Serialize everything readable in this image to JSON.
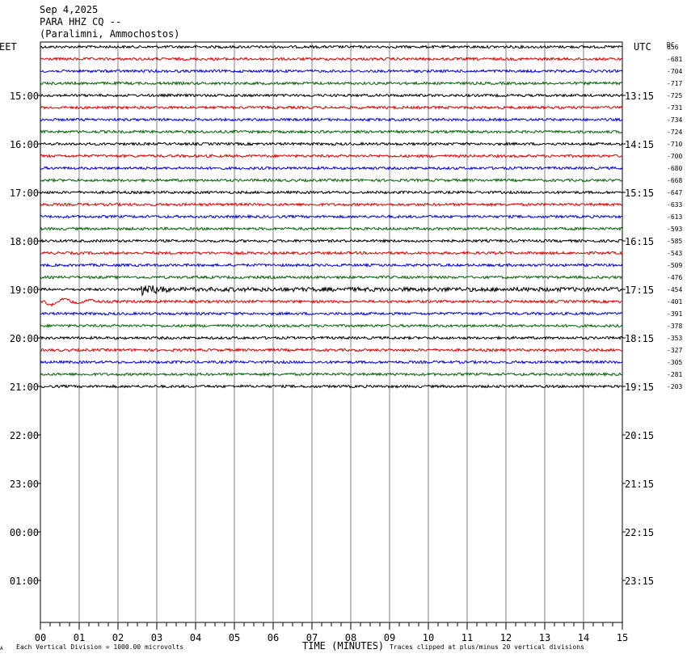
{
  "header": {
    "date": "Sep 4,2025",
    "station": "PARA HHZ CQ --",
    "location": "(Paralimni, Ammochostos)"
  },
  "chart_data": {
    "type": "line",
    "title": "",
    "xlabel": "TIME (MINUTES)",
    "x_ticks": [
      "00",
      "01",
      "02",
      "03",
      "04",
      "05",
      "06",
      "07",
      "08",
      "09",
      "10",
      "11",
      "12",
      "13",
      "14",
      "15"
    ],
    "xlim": [
      0,
      15
    ],
    "left_timezone": "EET",
    "right_timezone": "UTC",
    "left_hour_labels": [
      "15:00",
      "16:00",
      "17:00",
      "18:00",
      "19:00",
      "20:00",
      "21:00",
      "22:00",
      "23:00",
      "00:00",
      "01:00"
    ],
    "right_hour_labels": [
      "13:15",
      "14:15",
      "15:15",
      "16:15",
      "17:15",
      "18:15",
      "19:15",
      "20:15",
      "21:15",
      "22:15",
      "23:15"
    ],
    "dc_label": "DC",
    "dc_offsets": [
      "656",
      "-681",
      "-704",
      "-717",
      "-725",
      "-731",
      "-734",
      "-724",
      "-710",
      "-700",
      "-680",
      "-668",
      "-647",
      "-633",
      "-613",
      "-593",
      "-585",
      "-543",
      "-509",
      "-476",
      "-454",
      "-401",
      "-391",
      "-378",
      "-353",
      "-327",
      "-305",
      "-281",
      "-203"
    ],
    "trace_colors": [
      "#000000",
      "#d40000",
      "#0000cc",
      "#006400"
    ],
    "trace_count": 29,
    "events": [
      {
        "trace": 20,
        "start_min": 2.6,
        "end_min": 3.4,
        "label": ""
      },
      {
        "trace": 21,
        "start_min": 0.1,
        "end_min": 1.4,
        "label": ""
      }
    ],
    "footer_left": "Each Vertical Division = 1000.00 microvolts",
    "footer_right": "Traces clipped at plus/minus 20 vertical divisions",
    "footer_mark": "A"
  }
}
